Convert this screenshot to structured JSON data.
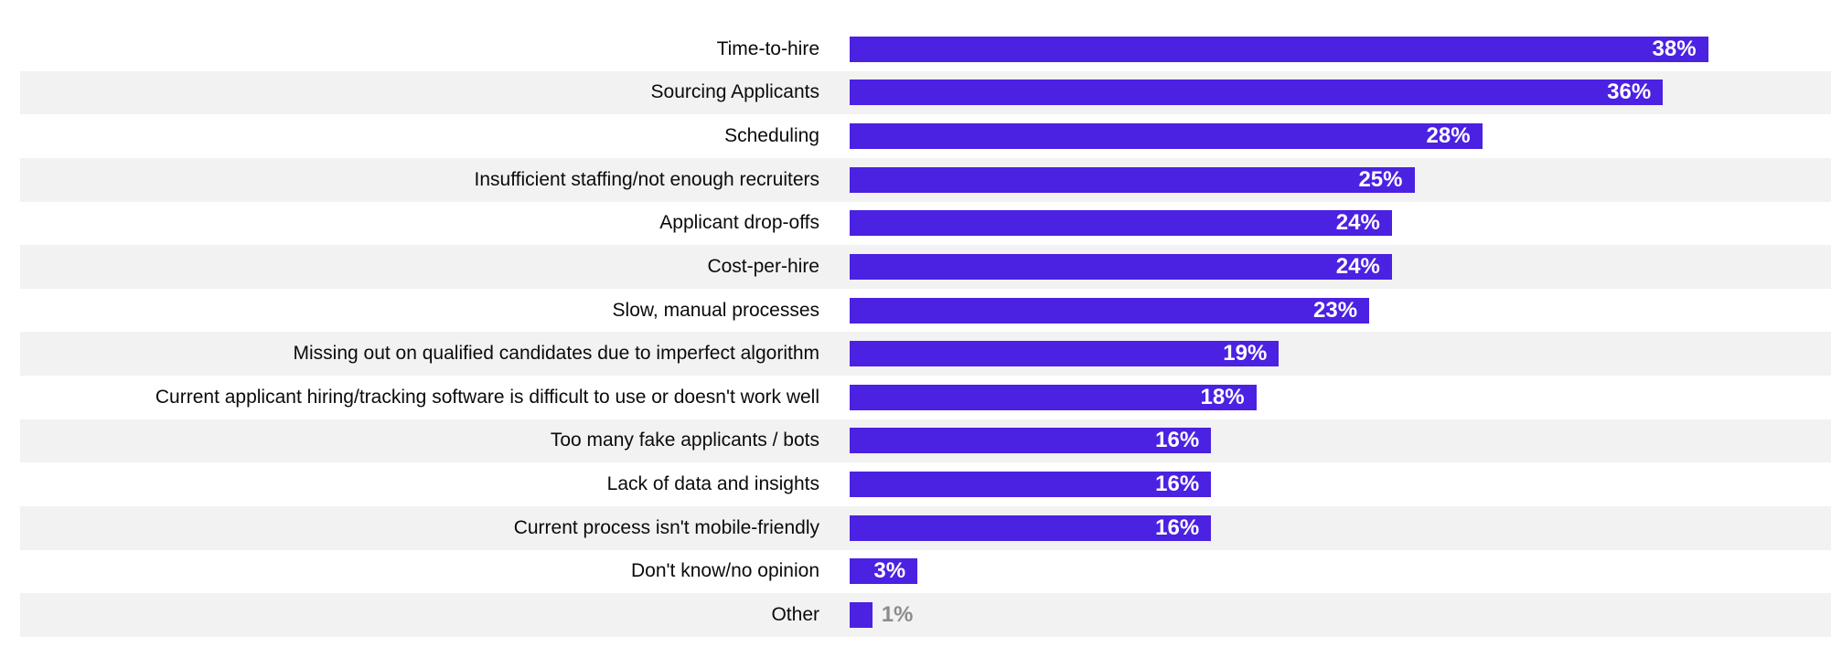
{
  "chart_data": {
    "type": "bar",
    "orientation": "horizontal",
    "title": "",
    "xlabel": "",
    "ylabel": "",
    "legend": "none",
    "grid": "off",
    "xlim": [
      0,
      40
    ],
    "categories": [
      "Time-to-hire",
      "Sourcing Applicants",
      "Scheduling",
      "Insufficient staffing/not enough recruiters",
      "Applicant drop-offs",
      "Cost-per-hire",
      "Slow, manual processes",
      "Missing out on qualified candidates due to imperfect algorithm",
      "Current applicant hiring/tracking software is difficult to use or doesn't work well",
      "Too many fake applicants / bots",
      "Lack of data and insights",
      "Current process isn't mobile-friendly",
      "Don't know/no opinion",
      "Other"
    ],
    "values": [
      38,
      36,
      28,
      25,
      24,
      24,
      23,
      19,
      18,
      16,
      16,
      16,
      3,
      1
    ],
    "value_labels": [
      "38%",
      "36%",
      "28%",
      "25%",
      "24%",
      "24%",
      "23%",
      "19%",
      "18%",
      "16%",
      "16%",
      "16%",
      "3%",
      "1%"
    ],
    "colors": {
      "bar": "#4B21E2",
      "row_stripe": "#F2F2F2",
      "category_text": "#0B0B0B",
      "value_text_inside": "#FFFFFF",
      "value_text_outside": "#8C8C8C",
      "background": "#FFFFFF"
    },
    "layout_hints": {
      "stripe_rows": "even rows (2nd, 4th, ...)",
      "value_label_position": "inside bar right-aligned; outside right of bar for smallest value"
    }
  }
}
